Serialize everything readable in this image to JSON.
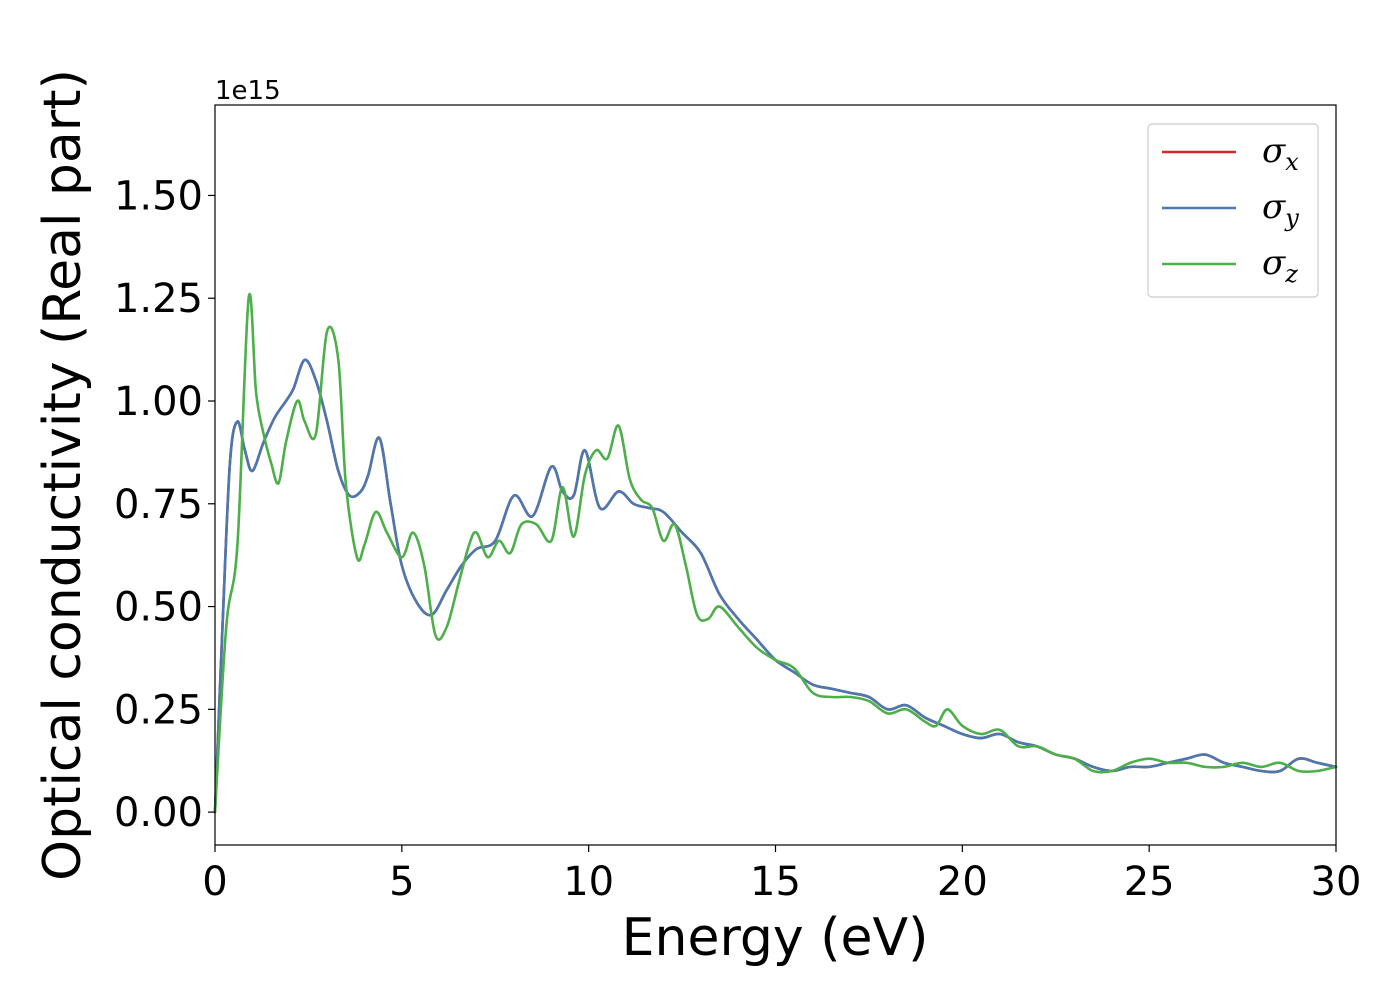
{
  "chart_data": {
    "type": "line",
    "xlabel": "Energy (eV)",
    "ylabel": "Optical conductivity (Real part)",
    "y_offset_label": "1e15",
    "xlim": [
      0,
      30
    ],
    "ylim": [
      -0.08,
      1.72
    ],
    "xticks": [
      0,
      5,
      10,
      15,
      20,
      25,
      30
    ],
    "xtick_labels": [
      "0",
      "5",
      "10",
      "15",
      "20",
      "25",
      "30"
    ],
    "yticks": [
      0.0,
      0.25,
      0.5,
      0.75,
      1.0,
      1.25,
      1.5
    ],
    "ytick_labels": [
      "0.00",
      "0.25",
      "0.50",
      "0.75",
      "1.00",
      "1.25",
      "1.50"
    ],
    "grid": false,
    "legend_position": "top-right",
    "series": [
      {
        "name": "σx",
        "symbol": "σ",
        "subscript": "x",
        "color": "#d62728",
        "x": [
          0,
          0.2,
          0.4,
          0.6,
          0.8,
          1.0,
          1.3,
          1.6,
          1.9,
          2.1,
          2.4,
          2.7,
          3.0,
          3.3,
          3.6,
          3.9,
          4.1,
          4.4,
          4.7,
          5.0,
          5.4,
          5.8,
          6.2,
          6.6,
          7.0,
          7.5,
          8.0,
          8.5,
          9.0,
          9.3,
          9.6,
          9.9,
          10.3,
          10.8,
          11.2,
          11.6,
          12.0,
          12.5,
          13.0,
          13.5,
          14.0,
          14.5,
          15.0,
          15.5,
          16.0,
          16.5,
          17.0,
          17.5,
          18.0,
          18.5,
          19.0,
          19.5,
          20.0,
          20.5,
          21.0,
          21.5,
          22.0,
          22.5,
          23.0,
          23.5,
          24.0,
          24.5,
          25.0,
          25.5,
          26.0,
          26.5,
          27.0,
          27.5,
          28.0,
          28.5,
          29.0,
          29.5,
          30.0
        ],
        "values": [
          0.0,
          0.45,
          0.85,
          0.95,
          0.88,
          0.83,
          0.9,
          0.96,
          1.0,
          1.03,
          1.1,
          1.05,
          0.95,
          0.83,
          0.77,
          0.78,
          0.82,
          0.91,
          0.75,
          0.6,
          0.51,
          0.48,
          0.54,
          0.6,
          0.64,
          0.66,
          0.77,
          0.72,
          0.84,
          0.78,
          0.77,
          0.88,
          0.74,
          0.78,
          0.75,
          0.74,
          0.73,
          0.68,
          0.63,
          0.53,
          0.47,
          0.42,
          0.37,
          0.34,
          0.31,
          0.3,
          0.29,
          0.28,
          0.25,
          0.26,
          0.23,
          0.21,
          0.19,
          0.18,
          0.19,
          0.17,
          0.16,
          0.14,
          0.13,
          0.11,
          0.1,
          0.11,
          0.11,
          0.12,
          0.13,
          0.14,
          0.12,
          0.11,
          0.1,
          0.1,
          0.13,
          0.12,
          0.11
        ]
      },
      {
        "name": "σy",
        "symbol": "σ",
        "subscript": "y",
        "color": "#4a78b0",
        "x": [
          0,
          0.2,
          0.4,
          0.6,
          0.8,
          1.0,
          1.3,
          1.6,
          1.9,
          2.1,
          2.4,
          2.7,
          3.0,
          3.3,
          3.6,
          3.9,
          4.1,
          4.4,
          4.7,
          5.0,
          5.4,
          5.8,
          6.2,
          6.6,
          7.0,
          7.5,
          8.0,
          8.5,
          9.0,
          9.3,
          9.6,
          9.9,
          10.3,
          10.8,
          11.2,
          11.6,
          12.0,
          12.5,
          13.0,
          13.5,
          14.0,
          14.5,
          15.0,
          15.5,
          16.0,
          16.5,
          17.0,
          17.5,
          18.0,
          18.5,
          19.0,
          19.5,
          20.0,
          20.5,
          21.0,
          21.5,
          22.0,
          22.5,
          23.0,
          23.5,
          24.0,
          24.5,
          25.0,
          25.5,
          26.0,
          26.5,
          27.0,
          27.5,
          28.0,
          28.5,
          29.0,
          29.5,
          30.0
        ],
        "values": [
          0.0,
          0.45,
          0.85,
          0.95,
          0.88,
          0.83,
          0.9,
          0.96,
          1.0,
          1.03,
          1.1,
          1.05,
          0.95,
          0.83,
          0.77,
          0.78,
          0.82,
          0.91,
          0.75,
          0.6,
          0.51,
          0.48,
          0.54,
          0.6,
          0.64,
          0.66,
          0.77,
          0.72,
          0.84,
          0.78,
          0.77,
          0.88,
          0.74,
          0.78,
          0.75,
          0.74,
          0.73,
          0.68,
          0.63,
          0.53,
          0.47,
          0.42,
          0.37,
          0.34,
          0.31,
          0.3,
          0.29,
          0.28,
          0.25,
          0.26,
          0.23,
          0.21,
          0.19,
          0.18,
          0.19,
          0.17,
          0.16,
          0.14,
          0.13,
          0.11,
          0.1,
          0.11,
          0.11,
          0.12,
          0.13,
          0.14,
          0.12,
          0.11,
          0.1,
          0.1,
          0.13,
          0.12,
          0.11
        ]
      },
      {
        "name": "σz",
        "symbol": "σ",
        "subscript": "z",
        "color": "#4daf4a",
        "x": [
          0,
          0.3,
          0.6,
          0.9,
          1.1,
          1.3,
          1.5,
          1.7,
          1.9,
          2.2,
          2.4,
          2.7,
          3.0,
          3.3,
          3.5,
          3.8,
          4.0,
          4.3,
          4.6,
          5.0,
          5.3,
          5.6,
          5.9,
          6.2,
          6.5,
          6.8,
          7.0,
          7.3,
          7.6,
          7.9,
          8.2,
          8.6,
          9.0,
          9.3,
          9.6,
          9.9,
          10.2,
          10.5,
          10.8,
          11.1,
          11.4,
          11.7,
          12.0,
          12.3,
          12.6,
          12.9,
          13.2,
          13.5,
          14.0,
          14.5,
          15.0,
          15.5,
          16.0,
          16.5,
          17.0,
          17.5,
          18.0,
          18.5,
          19.0,
          19.3,
          19.6,
          20.0,
          20.5,
          21.0,
          21.5,
          22.0,
          22.5,
          23.0,
          23.5,
          24.0,
          24.5,
          25.0,
          25.5,
          26.0,
          26.5,
          27.0,
          27.5,
          28.0,
          28.5,
          29.0,
          29.5,
          30.0
        ],
        "values": [
          0.0,
          0.45,
          0.65,
          1.25,
          1.02,
          0.92,
          0.85,
          0.8,
          0.9,
          1.0,
          0.95,
          0.92,
          1.17,
          1.1,
          0.8,
          0.62,
          0.65,
          0.73,
          0.68,
          0.62,
          0.68,
          0.6,
          0.43,
          0.45,
          0.55,
          0.65,
          0.68,
          0.62,
          0.66,
          0.63,
          0.7,
          0.7,
          0.66,
          0.79,
          0.67,
          0.82,
          0.88,
          0.86,
          0.94,
          0.81,
          0.76,
          0.74,
          0.66,
          0.7,
          0.6,
          0.48,
          0.47,
          0.5,
          0.45,
          0.4,
          0.37,
          0.35,
          0.29,
          0.28,
          0.28,
          0.27,
          0.24,
          0.25,
          0.22,
          0.21,
          0.25,
          0.21,
          0.19,
          0.2,
          0.16,
          0.16,
          0.14,
          0.13,
          0.1,
          0.1,
          0.12,
          0.13,
          0.12,
          0.12,
          0.11,
          0.11,
          0.12,
          0.11,
          0.12,
          0.1,
          0.1,
          0.11
        ]
      }
    ]
  }
}
